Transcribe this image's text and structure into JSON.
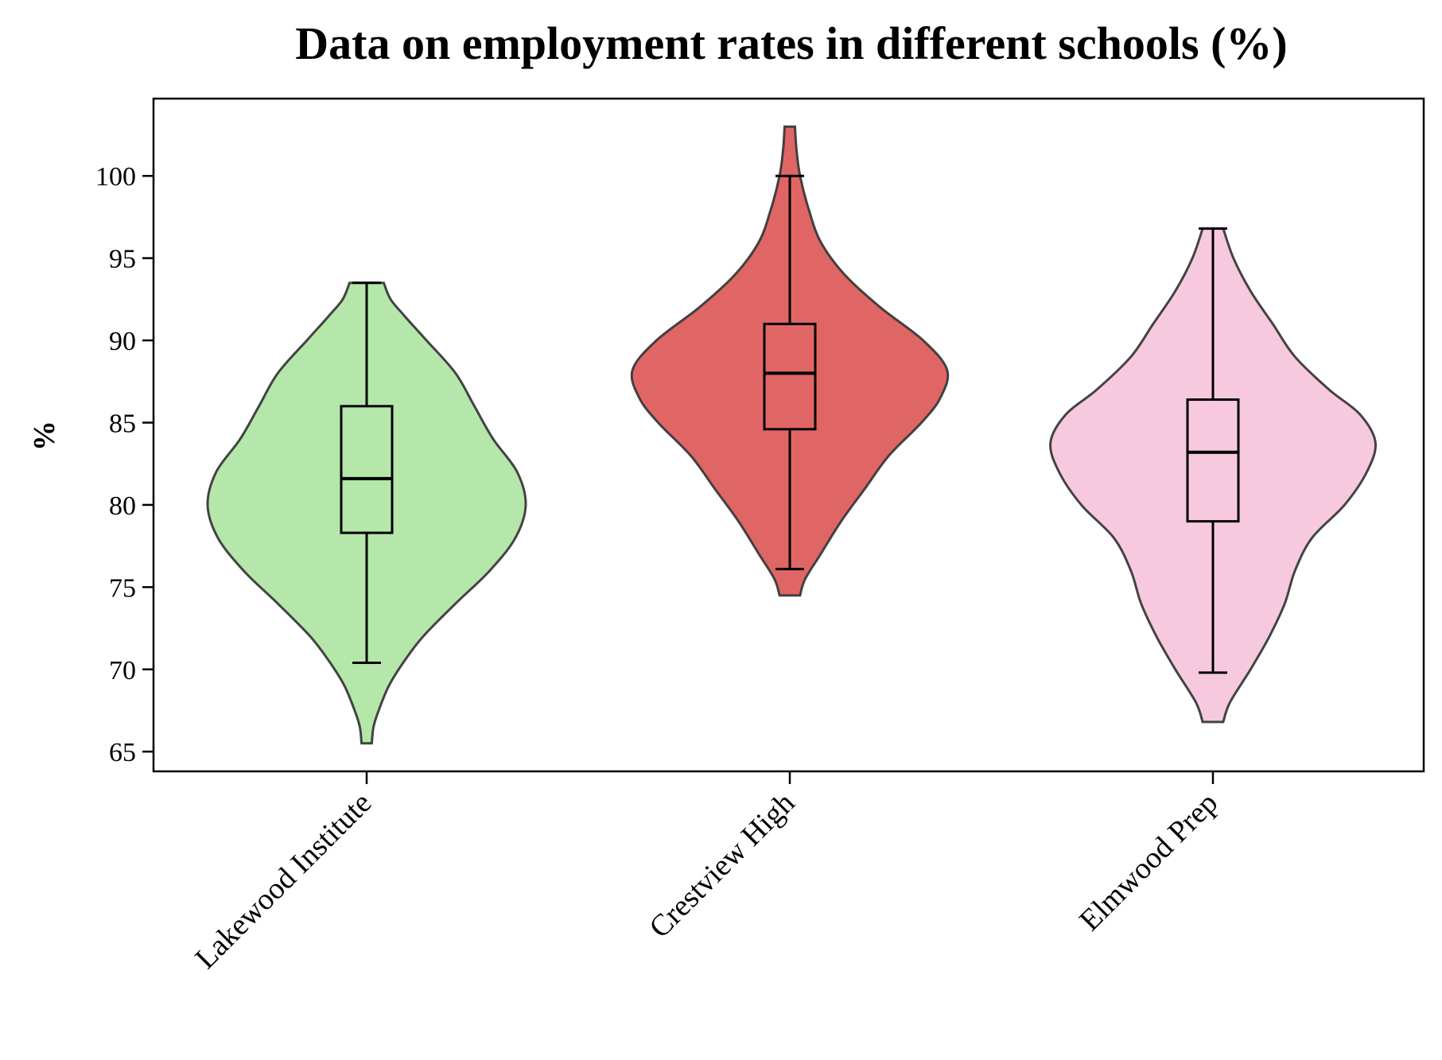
{
  "chart_data": {
    "type": "violin",
    "title": "Data on employment rates in different schools (%)",
    "xlabel": "",
    "ylabel": "%",
    "ylim": [
      63.8,
      104.7
    ],
    "yticks": [
      65,
      70,
      75,
      80,
      85,
      90,
      95,
      100
    ],
    "grid": false,
    "categories": [
      "Lakewood Institute",
      "Crestview High",
      "Elmwood Prep"
    ],
    "colors": [
      "#b5e7aa",
      "#e06666",
      "#f6c9de"
    ],
    "series": [
      {
        "box": {
          "whisker_low": 70.4,
          "q1": 78.3,
          "median": 81.6,
          "q3": 86.0,
          "whisker_high": 93.5
        },
        "violin": {
          "y": [
            65.5,
            66.5,
            67.5,
            69.0,
            70.5,
            72.0,
            74.0,
            76.0,
            78.0,
            80.0,
            82.0,
            84.0,
            86.0,
            88.0,
            90.0,
            91.5,
            92.5,
            93.5
          ],
          "half_width": [
            0.03,
            0.04,
            0.07,
            0.13,
            0.22,
            0.33,
            0.52,
            0.72,
            0.87,
            0.93,
            0.88,
            0.74,
            0.63,
            0.52,
            0.35,
            0.22,
            0.14,
            0.1
          ]
        }
      },
      {
        "box": {
          "whisker_low": 76.1,
          "q1": 84.6,
          "median": 88.0,
          "q3": 91.0,
          "whisker_high": 100.0
        },
        "violin": {
          "y": [
            74.5,
            75.5,
            77.0,
            79.0,
            81.0,
            83.0,
            85.0,
            86.5,
            88.2,
            90.0,
            92.0,
            94.0,
            96.0,
            98.0,
            100.0,
            101.5,
            103.0
          ],
          "half_width": [
            0.06,
            0.09,
            0.18,
            0.3,
            0.44,
            0.58,
            0.77,
            0.88,
            0.92,
            0.78,
            0.53,
            0.32,
            0.18,
            0.11,
            0.06,
            0.04,
            0.03
          ]
        }
      },
      {
        "box": {
          "whisker_low": 69.8,
          "q1": 79.0,
          "median": 83.2,
          "q3": 86.4,
          "whisker_high": 96.8
        },
        "violin": {
          "y": [
            66.8,
            68.0,
            70.0,
            72.0,
            74.0,
            76.0,
            78.0,
            80.0,
            82.0,
            83.8,
            85.5,
            87.0,
            89.0,
            91.0,
            93.0,
            95.0,
            96.8
          ],
          "half_width": [
            0.06,
            0.1,
            0.22,
            0.33,
            0.42,
            0.48,
            0.58,
            0.77,
            0.9,
            0.95,
            0.86,
            0.68,
            0.48,
            0.35,
            0.22,
            0.12,
            0.06
          ]
        }
      }
    ]
  }
}
